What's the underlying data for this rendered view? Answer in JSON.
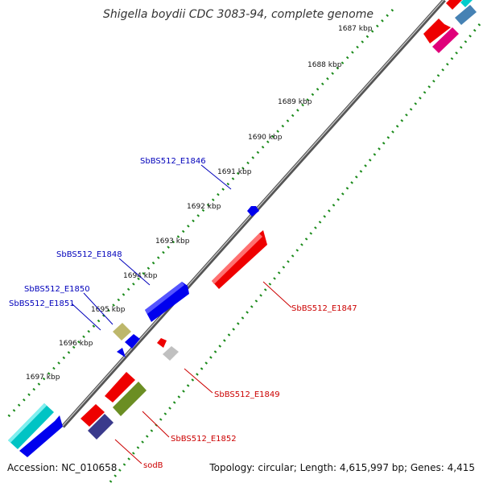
{
  "title": "Shigella boydii CDC 3083-94, complete genome",
  "footer": {
    "accession": "Accession: NC_010658",
    "summary": "Topology: circular; Length: 4,615,997 bp; Genes: 4,415"
  },
  "ticks": [
    "1687 kbp",
    "1688 kbp",
    "1689 kbp",
    "1690 kbp",
    "1691 kbp",
    "1692 kbp",
    "1693 kbp",
    "1694 kbp",
    "1695 kbp",
    "1696 kbp",
    "1697 kbp"
  ],
  "gene_labels": {
    "e1846": "SbBS512_E1846",
    "e1847": "SbBS512_E1847",
    "e1848": "SbBS512_E1848",
    "e1849": "SbBS512_E1849",
    "e1850": "SbBS512_E1850",
    "e1851": "SbBS512_E1851",
    "e1852": "SbBS512_E1852",
    "sodb": "sodB"
  },
  "colors": {
    "tick_dots": "#1a8a1a",
    "backbone": "#777777",
    "forward_label": "#0000bb",
    "reverse_label": "#cc0000"
  }
}
